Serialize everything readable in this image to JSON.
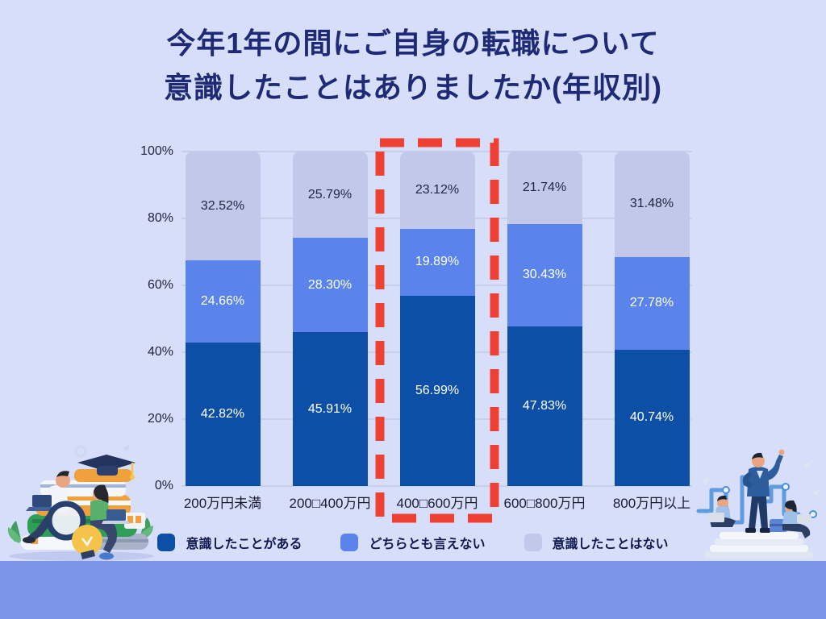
{
  "title": {
    "line1": "今年1年の間にご自身の転職について",
    "line2": "意識したことはありましたか(年収別)"
  },
  "chart_data": {
    "type": "bar",
    "subtype": "stacked-percentage",
    "categories": [
      "200万円未満",
      "200□400万円",
      "400□600万円",
      "600□800万円",
      "800万円以上"
    ],
    "series": [
      {
        "name": "意識したことがある",
        "color": "#0d4fa7",
        "values": [
          42.82,
          45.91,
          56.99,
          47.83,
          40.74
        ],
        "labels": [
          "42.82%",
          "45.91%",
          "56.99%",
          "47.83%",
          "40.74%"
        ]
      },
      {
        "name": "どちらとも言えない",
        "color": "#5b83ec",
        "values": [
          24.66,
          28.3,
          19.89,
          30.43,
          27.78
        ],
        "labels": [
          "24.66%",
          "28.30%",
          "19.89%",
          "30.43%",
          "27.78%"
        ]
      },
      {
        "name": "意識したことはない",
        "color": "#c2c8ea",
        "values": [
          32.52,
          25.79,
          23.12,
          21.74,
          31.48
        ],
        "labels": [
          "32.52%",
          "25.79%",
          "23.12%",
          "21.74%",
          "31.48%"
        ]
      }
    ],
    "y_ticks": [
      "0%",
      "20%",
      "40%",
      "60%",
      "80%",
      "100%"
    ],
    "ylim": [
      0,
      100
    ],
    "grid": true,
    "legend_position": "bottom",
    "highlight": {
      "category_index": 2,
      "style": "red-dashed-box",
      "color": "#ee4133"
    }
  },
  "colors": {
    "page_background": "#d7defa",
    "bottom_band": "#7b96e6",
    "title_text": "#1e2a75",
    "axis_text": "#23233a",
    "grid_line": "#c7cee8",
    "label_on_dark": "#ffffff",
    "label_on_light": "#1f2640",
    "legend_text": "#101a50",
    "highlight_red": "#ee4133"
  },
  "illustrations": {
    "left": "people-studying-on-book-stack",
    "right": "business-team-growth-chart"
  }
}
